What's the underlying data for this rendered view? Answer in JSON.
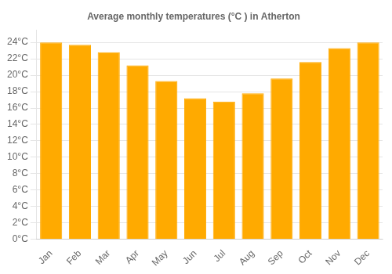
{
  "chart_data": {
    "type": "bar",
    "title": "Average monthly temperatures (°C ) in Atherton",
    "categories": [
      "Jan",
      "Feb",
      "Mar",
      "Apr",
      "May",
      "Jun",
      "Jul",
      "Aug",
      "Sep",
      "Oct",
      "Nov",
      "Dec"
    ],
    "values": [
      24.0,
      23.7,
      22.8,
      21.2,
      19.3,
      17.2,
      16.8,
      17.8,
      19.6,
      21.6,
      23.3,
      24.0
    ],
    "color": "#FFAA00",
    "ylim": [
      0,
      25.5
    ],
    "yticks": [
      {
        "value": 0,
        "label": "0°C"
      },
      {
        "value": 2,
        "label": "2°C"
      },
      {
        "value": 4,
        "label": "4°C"
      },
      {
        "value": 6,
        "label": "6°C"
      },
      {
        "value": 8,
        "label": "8°C"
      },
      {
        "value": 10,
        "label": "10°C"
      },
      {
        "value": 12,
        "label": "12°C"
      },
      {
        "value": 14,
        "label": "14°C"
      },
      {
        "value": 16,
        "label": "16°C"
      },
      {
        "value": 18,
        "label": "18°C"
      },
      {
        "value": 20,
        "label": "20°C"
      },
      {
        "value": 22,
        "label": "22°C"
      },
      {
        "value": 24,
        "label": "24°C"
      }
    ],
    "grid": true
  }
}
